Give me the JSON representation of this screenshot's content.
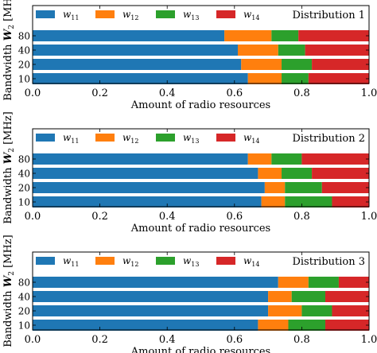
{
  "chart_data": [
    {
      "type": "bar",
      "orientation": "horizontal",
      "stacked": true,
      "title": "Distribution 1",
      "xlabel": "Amount of radio resources",
      "ylabel": "Bandwidth W2 [MHz]",
      "xlim": [
        0.0,
        1.0
      ],
      "xticks": [
        "0.0",
        "0.2",
        "0.4",
        "0.6",
        "0.8",
        "1.0"
      ],
      "categories": [
        "10",
        "20",
        "40",
        "80"
      ],
      "series": [
        {
          "name": "w11",
          "values": [
            0.64,
            0.62,
            0.61,
            0.57
          ]
        },
        {
          "name": "w12",
          "values": [
            0.1,
            0.12,
            0.12,
            0.14
          ]
        },
        {
          "name": "w13",
          "values": [
            0.08,
            0.09,
            0.08,
            0.08
          ]
        },
        {
          "name": "w14",
          "values": [
            0.18,
            0.17,
            0.19,
            0.21
          ]
        }
      ]
    },
    {
      "type": "bar",
      "orientation": "horizontal",
      "stacked": true,
      "title": "Distribution 2",
      "xlabel": "Amount of radio resources",
      "ylabel": "Bandwidth W2 [MHz]",
      "xlim": [
        0.0,
        1.0
      ],
      "xticks": [
        "0.0",
        "0.2",
        "0.4",
        "0.6",
        "0.8",
        "1.0"
      ],
      "categories": [
        "10",
        "20",
        "40",
        "80"
      ],
      "series": [
        {
          "name": "w11",
          "values": [
            0.68,
            0.69,
            0.67,
            0.64
          ]
        },
        {
          "name": "w12",
          "values": [
            0.07,
            0.06,
            0.07,
            0.07
          ]
        },
        {
          "name": "w13",
          "values": [
            0.14,
            0.11,
            0.09,
            0.09
          ]
        },
        {
          "name": "w14",
          "values": [
            0.11,
            0.14,
            0.17,
            0.2
          ]
        }
      ]
    },
    {
      "type": "bar",
      "orientation": "horizontal",
      "stacked": true,
      "title": "Distribution 3",
      "xlabel": "Amount of radio resources",
      "ylabel": "Bandwidth W2 [MHz]",
      "xlim": [
        0.0,
        1.0
      ],
      "xticks": [
        "0.0",
        "0.2",
        "0.4",
        "0.6",
        "0.8",
        "1.0"
      ],
      "categories": [
        "10",
        "20",
        "40",
        "80"
      ],
      "series": [
        {
          "name": "w11",
          "values": [
            0.67,
            0.7,
            0.7,
            0.73
          ]
        },
        {
          "name": "w12",
          "values": [
            0.09,
            0.1,
            0.07,
            0.09
          ]
        },
        {
          "name": "w13",
          "values": [
            0.11,
            0.09,
            0.1,
            0.09
          ]
        },
        {
          "name": "w14",
          "values": [
            0.13,
            0.11,
            0.13,
            0.09
          ]
        }
      ]
    }
  ],
  "colors": [
    "#1f77b4",
    "#ff7f0e",
    "#2ca02c",
    "#d62728"
  ]
}
